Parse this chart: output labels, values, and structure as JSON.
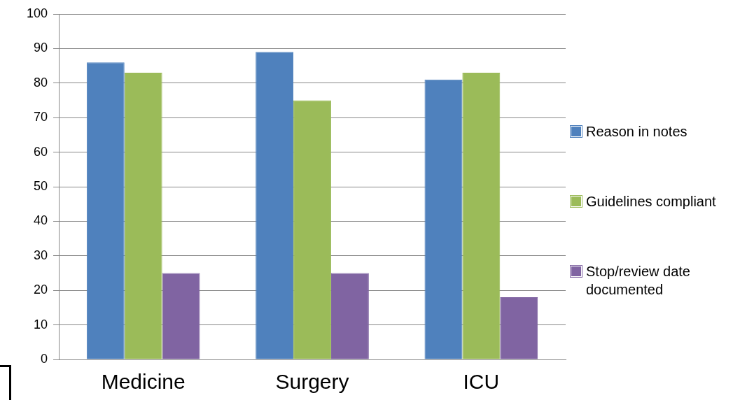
{
  "chart_data": {
    "type": "bar",
    "categories": [
      "Medicine",
      "Surgery",
      "ICU"
    ],
    "series": [
      {
        "name": "Reason in notes",
        "color": "#4f81bd",
        "values": [
          86,
          89,
          81
        ]
      },
      {
        "name": "Guidelines compliant",
        "color": "#9bbb59",
        "values": [
          83,
          75,
          83
        ]
      },
      {
        "name": "Stop/review date documented",
        "color": "#8064a2",
        "values": [
          25,
          25,
          18
        ]
      }
    ],
    "ylim": [
      0,
      100
    ],
    "yticks": [
      0,
      10,
      20,
      30,
      40,
      50,
      60,
      70,
      80,
      90,
      100
    ],
    "grid": "y",
    "legend": "right"
  }
}
